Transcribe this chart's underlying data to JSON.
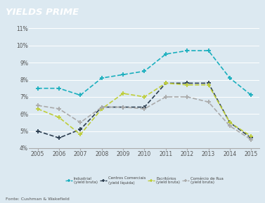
{
  "title": "YIELDS PRIME",
  "title_bg_color": "#1AAFBE",
  "title_text_color": "#FFFFFF",
  "bg_color": "#DCE9F1",
  "plot_bg_color": "#DCE9F1",
  "years": [
    2005,
    2006,
    2007,
    2008,
    2009,
    2010,
    2011,
    2012,
    2013,
    2014,
    2015
  ],
  "industrial": [
    7.5,
    7.5,
    7.1,
    8.1,
    8.3,
    8.5,
    9.5,
    9.7,
    9.7,
    8.1,
    7.1
  ],
  "centros_comerciais": [
    5.0,
    4.6,
    5.1,
    6.4,
    6.4,
    6.4,
    7.8,
    7.8,
    7.8,
    5.5,
    4.6
  ],
  "escritorios": [
    6.3,
    5.8,
    4.8,
    6.3,
    7.2,
    7.0,
    7.8,
    7.7,
    7.7,
    5.5,
    4.7
  ],
  "comercio_de_rua": [
    6.5,
    6.3,
    5.5,
    6.4,
    6.4,
    6.3,
    7.0,
    7.0,
    6.7,
    5.3,
    4.5
  ],
  "ylim": [
    4.0,
    11.0
  ],
  "yticks": [
    4,
    5,
    6,
    7,
    8,
    9,
    10,
    11
  ],
  "ytick_labels": [
    "4%",
    "5%",
    "6%",
    "7%",
    "8%",
    "9%",
    "10%",
    "11%"
  ],
  "colors": [
    "#1AAFBE",
    "#2C3E50",
    "#BFCE3A",
    "#AAAAAA"
  ],
  "legend_labels": [
    "Industrial\n(yield bruta)",
    "Centros Comerciais\n(yield líquida)",
    "Escritórios\n(yield bruta)",
    "Comércio de Rua\n(yield bruta)"
  ],
  "fonte": "Fonte: Cushman & Wakefield"
}
